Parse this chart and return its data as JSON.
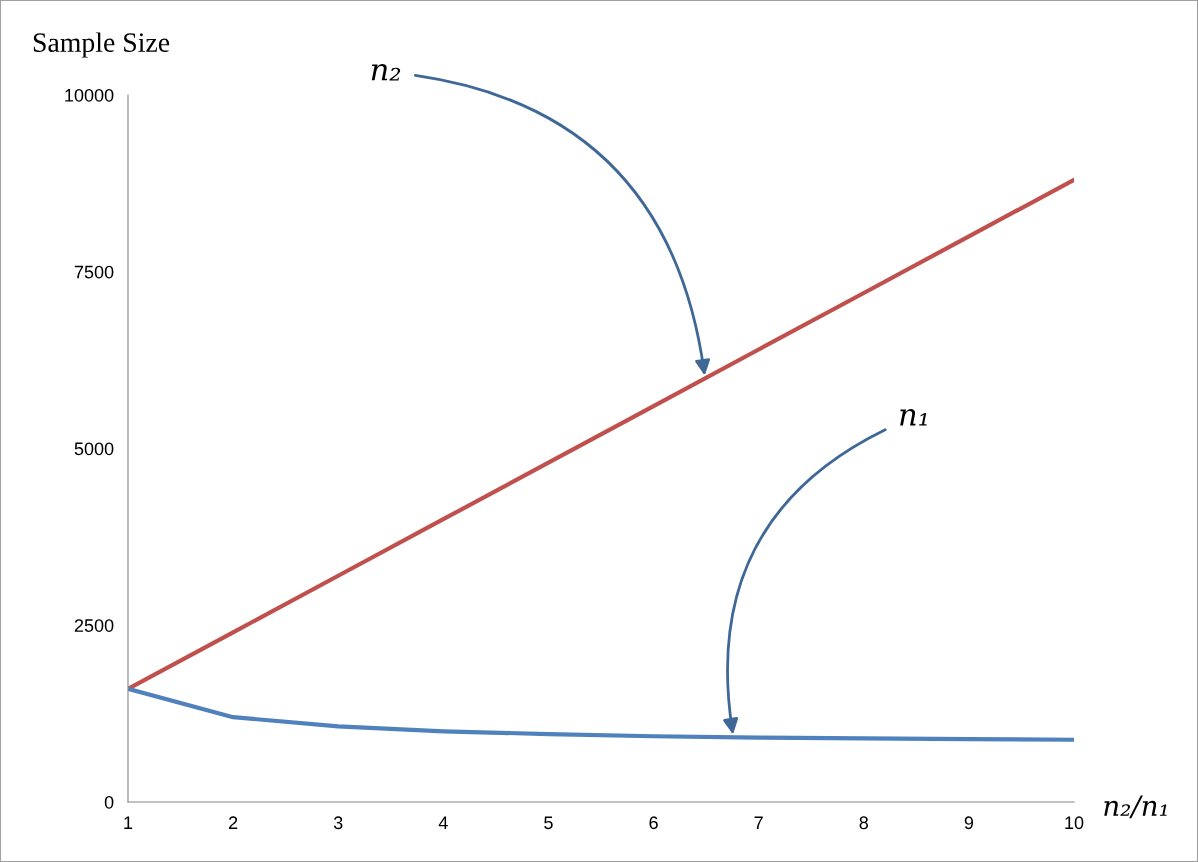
{
  "chart_data": {
    "type": "line",
    "ylabel": "Sample Size",
    "xlabel": "n₂/n₁",
    "x": [
      1,
      2,
      3,
      4,
      5,
      6,
      7,
      8,
      9,
      10
    ],
    "series": [
      {
        "name": "n₂",
        "color": "#c0504d",
        "values": [
          1600,
          2400,
          3200,
          4000,
          4800,
          5600,
          6400,
          7200,
          8000,
          8800
        ]
      },
      {
        "name": "n₁",
        "color": "#4f81bd",
        "values": [
          1600,
          1200,
          1070,
          1000,
          960,
          930,
          910,
          900,
          890,
          880
        ]
      }
    ],
    "xlim": [
      1,
      10
    ],
    "ylim": [
      0,
      10000
    ],
    "xticks": [
      1,
      2,
      3,
      4,
      5,
      6,
      7,
      8,
      9,
      10
    ],
    "yticks": [
      0,
      2500,
      5000,
      7500,
      10000
    ],
    "grid": false,
    "marker": "none",
    "line_style": "solid"
  }
}
